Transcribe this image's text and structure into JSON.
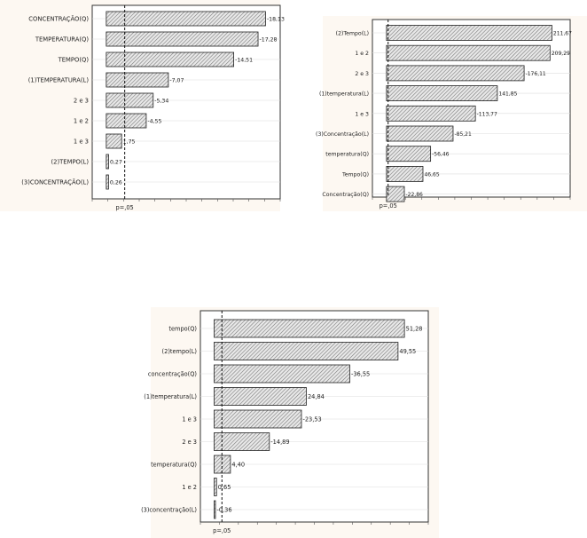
{
  "chart_data": [
    {
      "type": "bar",
      "orientation": "horizontal",
      "categories": [
        "CONCENTRAÇÃO(Q)",
        "TEMPERATURA(Q)",
        "TEMPO(Q)",
        "(1)TEMPERATURA(L)",
        "2 e 3",
        "1 e 2",
        "1 e 3",
        "(2)TEMPO(L)",
        "(3)CONCENTRAÇÃO(L)"
      ],
      "values": [
        18.13,
        17.28,
        14.51,
        7.07,
        5.34,
        4.55,
        1.75,
        0.27,
        0.26
      ],
      "value_labels": [
        "-18,13",
        "-17,28",
        "-14,51",
        "-7,07",
        "-5,34",
        "-4,55",
        "1,75",
        "0,27",
        "0,26"
      ],
      "xlim": [
        -1.6,
        19.8
      ],
      "threshold": 2.1,
      "threshold_label": "p=,05",
      "grid": true
    },
    {
      "type": "bar",
      "orientation": "horizontal",
      "categories": [
        "(2)Tempo(L)",
        "1 e 2",
        "2 e 3",
        "(1)temperatura(L)",
        "1 e 3",
        "(3)Concentração(L)",
        "temperatura(Q)",
        "Tempo(Q)",
        "Concentração(Q)"
      ],
      "values": [
        211.67,
        209.29,
        176.11,
        141.85,
        113.77,
        85.21,
        56.46,
        46.65,
        22.86
      ],
      "value_labels": [
        "211,67",
        "209,29",
        "-176,11",
        "141,85",
        "-113,77",
        "-85,21",
        "-56,46",
        "46,65",
        "-22,86"
      ],
      "xlim": [
        -18,
        235
      ],
      "threshold": 2.1,
      "threshold_label": "p=,05",
      "grid": true
    },
    {
      "type": "bar",
      "orientation": "horizontal",
      "categories": [
        "tempo(Q)",
        "(2)tempo(L)",
        "concentração(Q)",
        "(1)temperatura(L)",
        "1 e 3",
        "2 e 3",
        "temperatura(Q)",
        "1 e 2",
        "(3)concentração(L)"
      ],
      "values": [
        51.28,
        49.55,
        36.55,
        24.84,
        23.53,
        14.89,
        4.4,
        0.65,
        0.36
      ],
      "value_labels": [
        "51,28",
        "49,55",
        "-36,55",
        "24,84",
        "-23,53",
        "-14,89",
        "4,40",
        "0,65",
        "-0,36"
      ],
      "xlim": [
        -3.7,
        57.7
      ],
      "threshold": 2.1,
      "threshold_label": "p=,05",
      "grid": true
    }
  ],
  "colors": {
    "panel_bg": "#fdf8f2",
    "plot_bg": "#ffffff",
    "bar_hatch": "#8a8a8a",
    "bar_edge": "#222222",
    "text": "#222222"
  }
}
